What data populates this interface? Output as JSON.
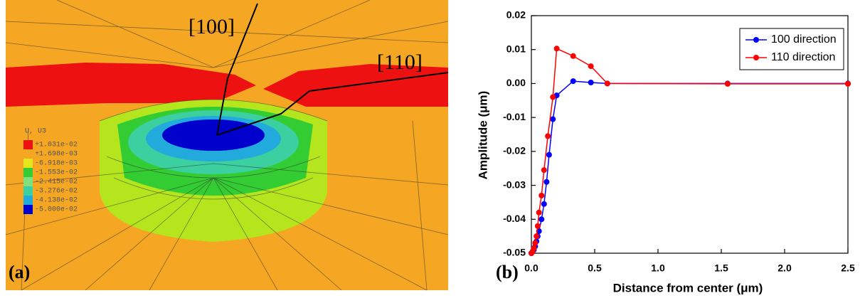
{
  "figure_a": {
    "labels": [
      "[100]",
      "[110]"
    ],
    "panel_label": "(a)",
    "legend": {
      "title": "U, U3",
      "entries": [
        "+1.031e-02",
        "+1.698e-03",
        "-6.918e-03",
        "-1.553e-02",
        "-2.415e-02",
        "-3.276e-02",
        "-4.138e-02",
        "-5.000e-02"
      ]
    }
  },
  "chart_data": {
    "type": "line",
    "panel_label": "(b)",
    "x_label": "Distance from center (μm)",
    "y_label": "Amplitude (μm)",
    "xlim": [
      0,
      2.5
    ],
    "ylim": [
      -0.05,
      0.02
    ],
    "xticks": [
      {
        "value": 0,
        "label": "0.0"
      },
      {
        "value": 0.5,
        "label": "0.5"
      },
      {
        "value": 1,
        "label": "1.0"
      },
      {
        "value": 1.5,
        "label": "1.5"
      },
      {
        "value": 2,
        "label": "2.0"
      },
      {
        "value": 2.5,
        "label": "2.5"
      }
    ],
    "yticks": [
      -0.05,
      -0.04,
      -0.03,
      -0.02,
      -0.01,
      {
        "value": 0,
        "label": "0.00"
      },
      0.01,
      0.02
    ],
    "legend": "upper right",
    "series": [
      {
        "name": "100 direction",
        "color": "#0000ff",
        "x": [
          0,
          0.01,
          0.02,
          0.03,
          0.04,
          0.05,
          0.06,
          0.08,
          0.1,
          0.12,
          0.14,
          0.17,
          0.2,
          0.33,
          0.47,
          0.6,
          1.55,
          2.5
        ],
        "values": [
          -0.05,
          -0.0495,
          -0.049,
          -0.048,
          -0.0465,
          -0.045,
          -0.0435,
          -0.04,
          -0.0355,
          -0.029,
          -0.021,
          -0.0105,
          -0.0035,
          0.0007,
          0.0003,
          0,
          0,
          0
        ]
      },
      {
        "name": "110 direction",
        "color": "#ff0000",
        "x": [
          0,
          0.01,
          0.02,
          0.03,
          0.04,
          0.05,
          0.06,
          0.08,
          0.1,
          0.13,
          0.17,
          0.2,
          0.33,
          0.47,
          0.6,
          1.55,
          2.5
        ],
        "values": [
          -0.05,
          -0.0495,
          -0.0485,
          -0.047,
          -0.045,
          -0.042,
          -0.038,
          -0.033,
          -0.0255,
          -0.0155,
          -0.004,
          0.0103,
          0.0081,
          0.0051,
          0,
          -0.0001,
          -0.0001
        ]
      }
    ]
  }
}
